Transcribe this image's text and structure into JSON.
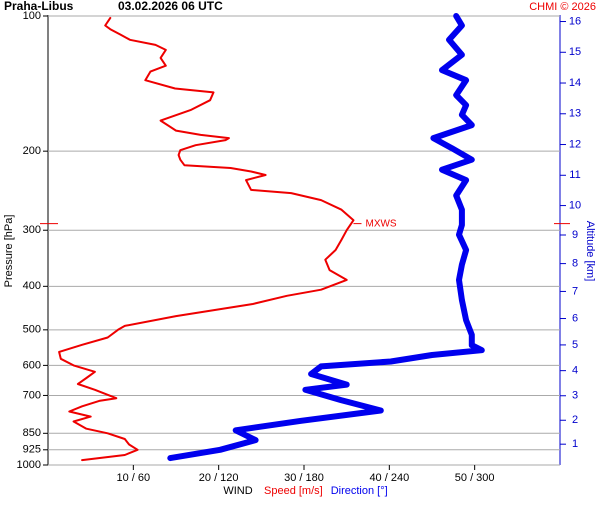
{
  "chart_data": {
    "type": "profile",
    "station": "Praha-Libus",
    "date": "03.02.2026 06 UTC",
    "credit": "CHMI © 2026",
    "y_label": "Pressure [hPa]",
    "y2_label": "Altitude [km]",
    "x_label": "WIND",
    "xlim": [
      0,
      60
    ],
    "x2lim": [
      0,
      360
    ],
    "xticks": [
      {
        "value": 10,
        "label": "10 / 60"
      },
      {
        "value": 20,
        "label": "20 / 120"
      },
      {
        "value": 30,
        "label": "30 / 180"
      },
      {
        "value": 40,
        "label": "40 / 240"
      },
      {
        "value": 50,
        "label": "50 / 300"
      }
    ],
    "ylim": [
      1000,
      100
    ],
    "log_y": true,
    "grid": true,
    "yticks": [
      100,
      200,
      300,
      400,
      500,
      600,
      700,
      850,
      925,
      1000
    ],
    "y2ticks": [
      1,
      2,
      3,
      4,
      5,
      6,
      7,
      8,
      9,
      10,
      11,
      12,
      13,
      14,
      15,
      16
    ],
    "annotations": [
      {
        "text": "MXWS",
        "pressure": 290
      }
    ],
    "series": [
      {
        "name": "Speed [m/s]",
        "color": "#ee0000",
        "pressure": [
          975,
          950,
          925,
          900,
          875,
          850,
          830,
          800,
          780,
          760,
          740,
          720,
          710,
          680,
          660,
          640,
          620,
          600,
          580,
          560,
          540,
          520,
          500,
          490,
          466,
          438,
          420,
          407,
          387,
          368,
          349,
          332,
          315,
          300,
          285,
          270,
          257,
          248,
          244,
          232,
          226,
          222,
          218,
          215,
          209,
          204,
          199,
          194,
          189,
          187,
          184,
          180,
          171,
          162,
          154,
          148,
          145,
          139,
          133,
          129,
          124,
          119,
          116,
          113,
          110,
          107,
          105,
          101
        ],
        "values": [
          4,
          9,
          10.5,
          9.5,
          9,
          7,
          4.5,
          3,
          5,
          2.5,
          4,
          6,
          8,
          5.5,
          3.5,
          4.5,
          5.5,
          3,
          1.5,
          1.3,
          4,
          7,
          8.2,
          9,
          15,
          24,
          28,
          32,
          35,
          33,
          32.5,
          33.7,
          34.4,
          35,
          35.8,
          34.4,
          32,
          28.5,
          23.8,
          23.2,
          25.5,
          23.8,
          21.4,
          16,
          15.5,
          15.3,
          15.5,
          17.3,
          20.8,
          21.2,
          17.9,
          15,
          13.2,
          16.7,
          19,
          19.4,
          14.9,
          11.4,
          12,
          13.8,
          13.2,
          13.8,
          12.6,
          9.6,
          8.5,
          7.3,
          6.7,
          7.3
        ]
      },
      {
        "name": "Direction [°]",
        "color": "#0000ee",
        "axis": "x2",
        "pressure": [
          965,
          925,
          880,
          837,
          797,
          756,
          717,
          680,
          662,
          627,
          603,
          588,
          569,
          555,
          541,
          513,
          476,
          429,
          387,
          358,
          332,
          307,
          292,
          270,
          251,
          232,
          220,
          209,
          197,
          187,
          175,
          166,
          158,
          150,
          139,
          132,
          122,
          113,
          105,
          100
        ],
        "values": [
          86,
          121,
          146,
          132,
          178,
          234,
          206,
          181,
          210,
          185,
          192,
          241,
          270,
          305,
          298,
          298,
          294,
          291,
          289,
          291,
          294,
          289,
          291,
          291,
          287,
          294,
          277,
          298,
          284,
          271,
          298,
          291,
          294,
          287,
          294,
          277,
          291,
          282,
          291,
          287
        ]
      }
    ]
  }
}
